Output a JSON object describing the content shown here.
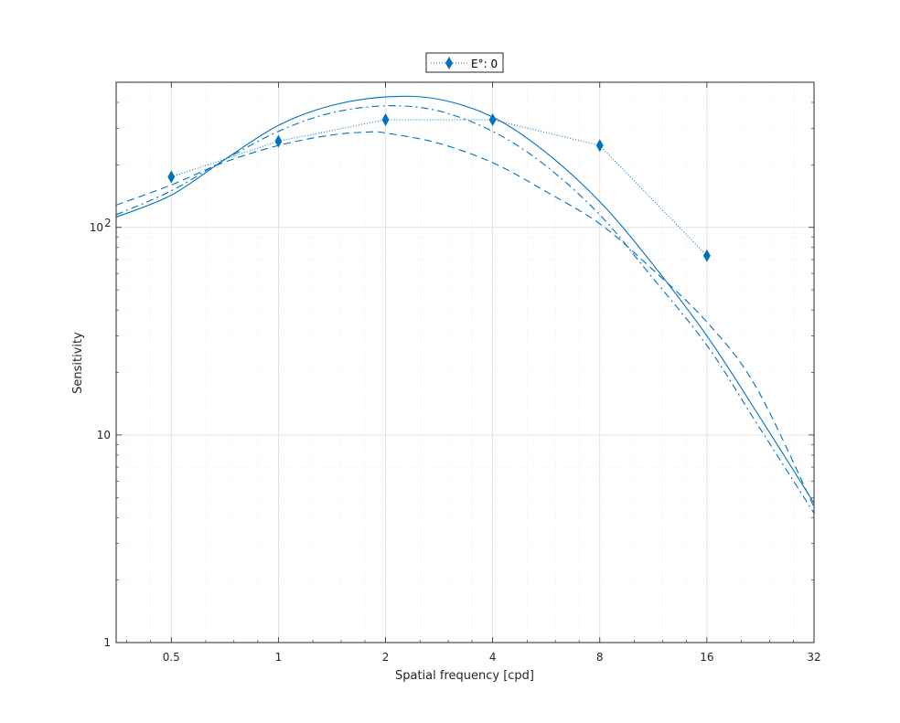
{
  "chart_data": {
    "type": "line",
    "xlabel": "Spatial frequency [cpd]",
    "ylabel": "Sensitivity",
    "x_scale": "log2",
    "y_scale": "log10",
    "xlim": [
      0.35,
      32
    ],
    "ylim": [
      1,
      500
    ],
    "grid": true,
    "minor_grid": true,
    "color": "#0072bd",
    "x_ticks": [
      {
        "value": 0.5,
        "label": "0.5"
      },
      {
        "value": 1,
        "label": "1"
      },
      {
        "value": 2,
        "label": "2"
      },
      {
        "value": 4,
        "label": "4"
      },
      {
        "value": 8,
        "label": "8"
      },
      {
        "value": 16,
        "label": "16"
      },
      {
        "value": 32,
        "label": "32"
      }
    ],
    "y_ticks": [
      {
        "value": 1,
        "label": "1"
      },
      {
        "value": 10,
        "label": "10"
      },
      {
        "value": 100,
        "label": "10",
        "exponent": "2"
      }
    ],
    "legend": {
      "position": "top",
      "entries": [
        {
          "label": "E°: 0",
          "marker": "diamond",
          "line": "dotted"
        }
      ]
    },
    "series": [
      {
        "name": "E°: 0",
        "style": "dotted-markers",
        "x": [
          0.5,
          1,
          2,
          4,
          8,
          16
        ],
        "y": [
          175,
          260,
          330,
          330,
          248,
          73
        ]
      },
      {
        "style": "solid",
        "x": [
          0.35,
          0.5,
          0.7,
          1,
          1.4,
          2,
          2.8,
          4,
          5.6,
          8,
          11,
          16,
          22,
          32
        ],
        "y": [
          112,
          143,
          210,
          310,
          385,
          425,
          415,
          340,
          232,
          133,
          70,
          30,
          13,
          4.7
        ]
      },
      {
        "style": "dashed",
        "x": [
          0.35,
          0.5,
          0.7,
          1,
          1.4,
          1.8,
          2,
          2.8,
          4,
          5.6,
          8,
          11,
          16,
          22,
          32
        ],
        "y": [
          128,
          160,
          205,
          248,
          278,
          288,
          285,
          255,
          205,
          150,
          104,
          65,
          35,
          17,
          4.5
        ]
      },
      {
        "style": "dash-dot",
        "x": [
          0.35,
          0.5,
          0.7,
          1,
          1.4,
          2,
          2.8,
          4,
          5.6,
          8,
          11,
          16,
          22,
          32
        ],
        "y": [
          115,
          150,
          210,
          290,
          355,
          385,
          365,
          290,
          200,
          115,
          60,
          27,
          11.5,
          4.2
        ]
      }
    ]
  }
}
